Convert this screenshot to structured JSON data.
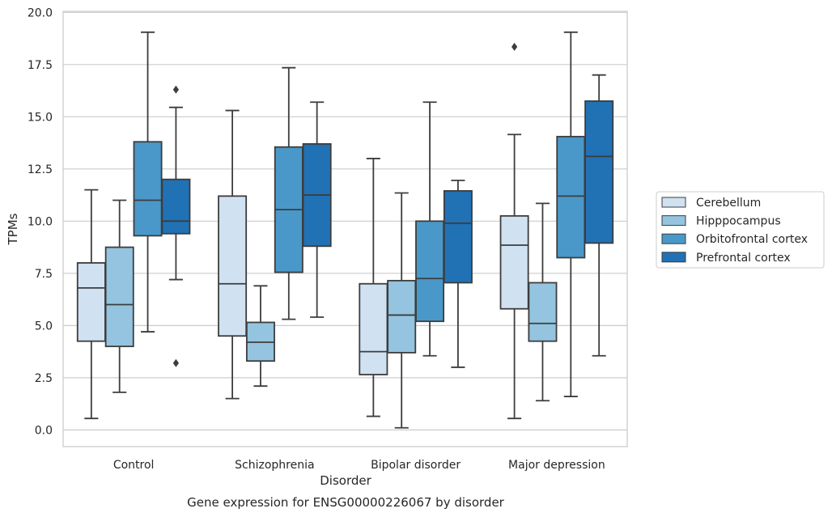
{
  "chart_data": {
    "type": "boxplot",
    "title": "Gene expression for ENSG00000226067 by disorder",
    "xlabel": "Disorder",
    "ylabel": "TPMs",
    "ylim": [
      -0.8,
      20.05
    ],
    "yticks": [
      0.0,
      2.5,
      5.0,
      7.5,
      10.0,
      12.5,
      15.0,
      17.5,
      20.0
    ],
    "ytick_labels": [
      "0.0",
      "2.5",
      "5.0",
      "7.5",
      "10.0",
      "12.5",
      "15.0",
      "17.5",
      "20.0"
    ],
    "grid": "horizontal",
    "legend_position": "right",
    "categories": [
      "Control",
      "Schizophrenia",
      "Bipolar disorder",
      "Major depression"
    ],
    "series": [
      {
        "name": "Cerebellum",
        "color": "#d0e1f2",
        "boxes": [
          {
            "whisker_low": 0.55,
            "q1": 4.25,
            "median": 6.8,
            "q3": 8.0,
            "whisker_high": 11.5,
            "outliers": []
          },
          {
            "whisker_low": 1.5,
            "q1": 4.5,
            "median": 7.0,
            "q3": 11.2,
            "whisker_high": 15.3,
            "outliers": []
          },
          {
            "whisker_low": 0.65,
            "q1": 2.65,
            "median": 3.75,
            "q3": 7.0,
            "whisker_high": 13.0,
            "outliers": []
          },
          {
            "whisker_low": 0.55,
            "q1": 5.8,
            "median": 8.85,
            "q3": 10.25,
            "whisker_high": 14.15,
            "outliers": [
              18.35
            ]
          }
        ]
      },
      {
        "name": "Hipppocampus",
        "color": "#94c4df",
        "boxes": [
          {
            "whisker_low": 1.8,
            "q1": 4.0,
            "median": 6.0,
            "q3": 8.75,
            "whisker_high": 11.0,
            "outliers": []
          },
          {
            "whisker_low": 2.1,
            "q1": 3.3,
            "median": 4.2,
            "q3": 5.15,
            "whisker_high": 6.9,
            "outliers": []
          },
          {
            "whisker_low": 0.1,
            "q1": 3.7,
            "median": 5.5,
            "q3": 7.15,
            "whisker_high": 11.35,
            "outliers": []
          },
          {
            "whisker_low": 1.4,
            "q1": 4.25,
            "median": 5.1,
            "q3": 7.05,
            "whisker_high": 10.85,
            "outliers": []
          }
        ]
      },
      {
        "name": "Orbitofrontal cortex",
        "color": "#4a98c9",
        "boxes": [
          {
            "whisker_low": 4.7,
            "q1": 9.3,
            "median": 11.0,
            "q3": 13.8,
            "whisker_high": 19.05,
            "outliers": []
          },
          {
            "whisker_low": 5.3,
            "q1": 7.55,
            "median": 10.55,
            "q3": 13.55,
            "whisker_high": 17.35,
            "outliers": []
          },
          {
            "whisker_low": 3.55,
            "q1": 5.2,
            "median": 7.25,
            "q3": 10.0,
            "whisker_high": 15.7,
            "outliers": []
          },
          {
            "whisker_low": 1.6,
            "q1": 8.25,
            "median": 11.2,
            "q3": 14.05,
            "whisker_high": 19.05,
            "outliers": []
          }
        ]
      },
      {
        "name": "Prefrontal cortex",
        "color": "#2171b5",
        "boxes": [
          {
            "whisker_low": 7.2,
            "q1": 9.4,
            "median": 10.0,
            "q3": 12.0,
            "whisker_high": 15.45,
            "outliers": [
              16.3,
              3.2
            ]
          },
          {
            "whisker_low": 5.4,
            "q1": 8.8,
            "median": 11.25,
            "q3": 13.7,
            "whisker_high": 15.7,
            "outliers": []
          },
          {
            "whisker_low": 3.0,
            "q1": 7.05,
            "median": 9.9,
            "q3": 11.45,
            "whisker_high": 11.95,
            "outliers": []
          },
          {
            "whisker_low": 3.55,
            "q1": 8.95,
            "median": 13.1,
            "q3": 15.75,
            "whisker_high": 17.0,
            "outliers": []
          }
        ]
      }
    ]
  }
}
